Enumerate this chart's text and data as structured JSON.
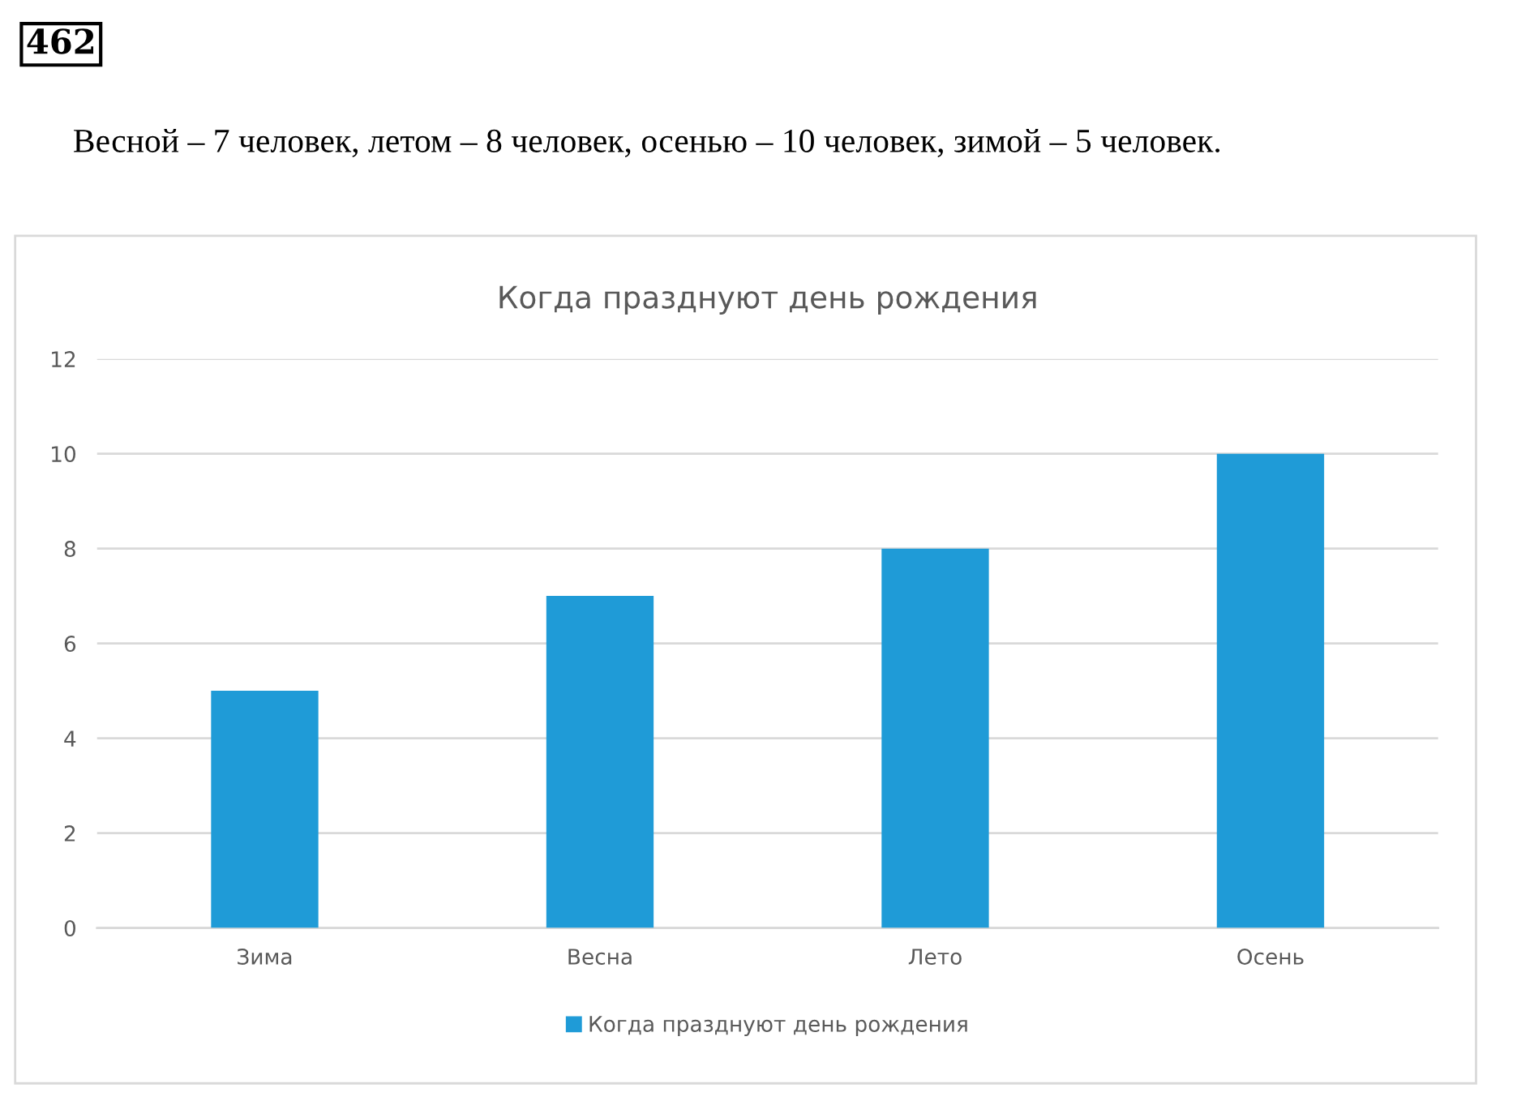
{
  "chart_data": {
    "type": "bar",
    "title": "Когда празднуют день рождения",
    "categories": [
      "Зима",
      "Весна",
      "Лето",
      "Осень"
    ],
    "series": [
      {
        "name": "Когда празднуют день рождения",
        "color": "#1f9bd7",
        "values": [
          5,
          7,
          8,
          10
        ]
      }
    ],
    "ylim": [
      0,
      12
    ],
    "yticks": [
      0,
      2,
      4,
      6,
      8,
      10,
      12
    ],
    "grid": "y",
    "legend": "bottom",
    "annotations": [
      "462",
      "Весной – 7 человек, летом – 8 человек, осенью – 10 человек, зимой – 5 человек."
    ]
  }
}
